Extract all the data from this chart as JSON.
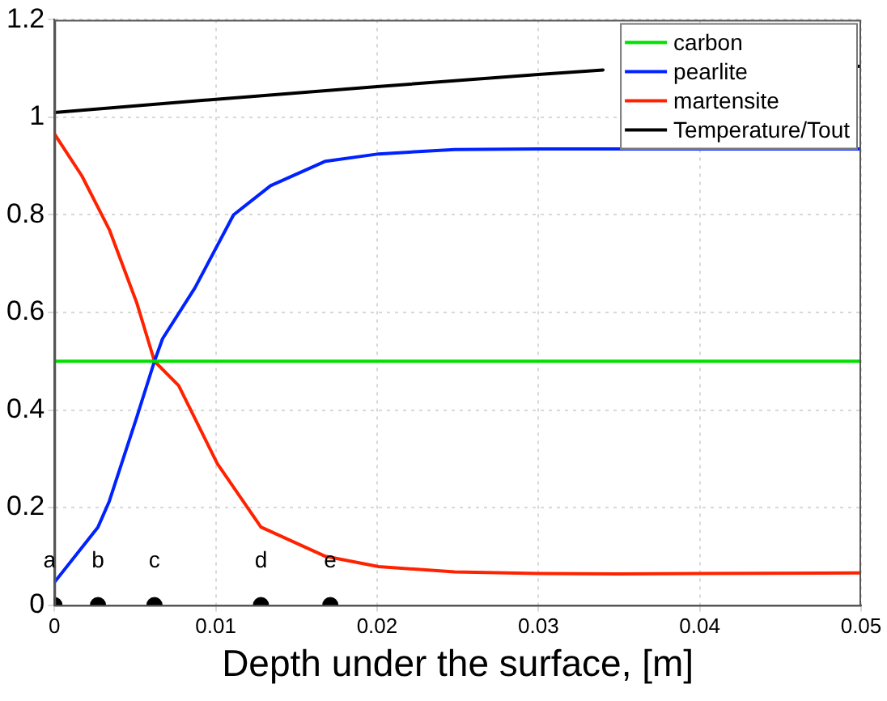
{
  "chart_data": {
    "type": "line",
    "xlabel": "Depth under the surface, [m]",
    "xlim": [
      0,
      0.05
    ],
    "xticks": [
      0,
      0.01,
      0.02,
      0.03,
      0.04,
      0.05
    ],
    "ylim": [
      0,
      1.2
    ],
    "yticks": [
      0,
      0.2,
      0.4,
      0.6,
      0.8,
      1,
      1.2
    ],
    "grid": true,
    "legend": "top right",
    "line_style": "solid",
    "series": [
      {
        "name": "carbon",
        "color": "#00e000",
        "marker": "none",
        "x": [
          0,
          0.01,
          0.02,
          0.03,
          0.04,
          0.05
        ],
        "values": [
          0.5,
          0.5,
          0.5,
          0.5,
          0.5,
          0.5
        ]
      },
      {
        "name": "pearlite",
        "color": "#0022ff",
        "marker": "none",
        "x": [
          0,
          0.0027,
          0.0034,
          0.0051,
          0.0062,
          0.0067,
          0.0087,
          0.0111,
          0.0134,
          0.0168,
          0.0201,
          0.0248,
          0.03,
          0.04,
          0.05
        ],
        "values": [
          0.047,
          0.16,
          0.213,
          0.385,
          0.5,
          0.546,
          0.65,
          0.8,
          0.86,
          0.91,
          0.925,
          0.934,
          0.935,
          0.935,
          0.935
        ]
      },
      {
        "name": "martensite",
        "color": "#ff2200",
        "marker": "none",
        "x": [
          0,
          0.0017,
          0.0034,
          0.0051,
          0.0062,
          0.0077,
          0.0101,
          0.0128,
          0.0168,
          0.0201,
          0.0248,
          0.03,
          0.035,
          0.04,
          0.05
        ],
        "values": [
          0.966,
          0.88,
          0.77,
          0.62,
          0.5,
          0.45,
          0.29,
          0.16,
          0.1,
          0.079,
          0.068,
          0.065,
          0.064,
          0.065,
          0.066
        ]
      },
      {
        "name": "Temperature/Tout",
        "color": "#000000",
        "marker": "none",
        "x": [
          0,
          0.01,
          0.02,
          0.03,
          0.034,
          0.04,
          0.0495,
          0.05
        ],
        "values": [
          1.01,
          1.037,
          1.063,
          1.088,
          1.097,
          null,
          1.104,
          1.105
        ]
      },
      {
        "type": "scatter",
        "color": "#000000",
        "marker": "circle",
        "x": [
          0,
          0.0027,
          0.0062,
          0.0128,
          0.0171
        ],
        "values": [
          0,
          0,
          0,
          0,
          0
        ]
      }
    ],
    "annotations": [
      {
        "text": "a",
        "x": 0,
        "y": 0
      },
      {
        "text": "b",
        "x": 0.0027,
        "y": 0
      },
      {
        "text": "c",
        "x": 0.0062,
        "y": 0
      },
      {
        "text": "d",
        "x": 0.0128,
        "y": 0
      },
      {
        "text": "e",
        "x": 0.0171,
        "y": 0
      }
    ]
  }
}
